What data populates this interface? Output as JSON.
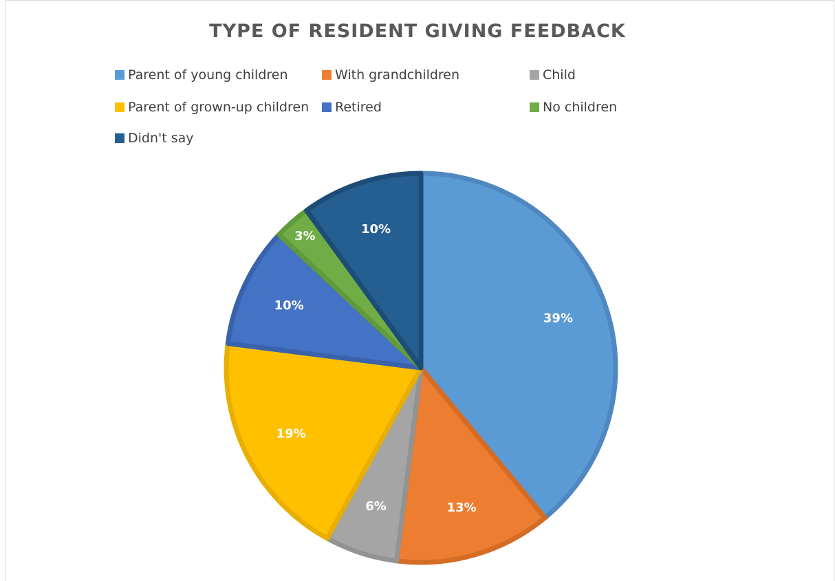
{
  "chart_data": {
    "type": "pie",
    "title": "TYPE OF RESIDENT GIVING FEEDBACK",
    "legend_position": "top",
    "categories": [
      "Parent of young children",
      "With grandchildren",
      "Child",
      "Parent of grown-up children",
      "Retired",
      "No children",
      "Didn't say"
    ],
    "values": [
      39,
      13,
      6,
      19,
      10,
      3,
      10
    ],
    "labels": [
      "39%",
      "13%",
      "6%",
      "19%",
      "10%",
      "3%",
      "10%"
    ],
    "colors": [
      "#5b9bd5",
      "#ed7d31",
      "#a5a5a5",
      "#ffc000",
      "#4472c4",
      "#70ad47",
      "#255e91"
    ],
    "border_colors": [
      "#4f88c0",
      "#d46c26",
      "#939393",
      "#e8af00",
      "#3a62ab",
      "#5f9a3b",
      "#1d4d77"
    ]
  }
}
